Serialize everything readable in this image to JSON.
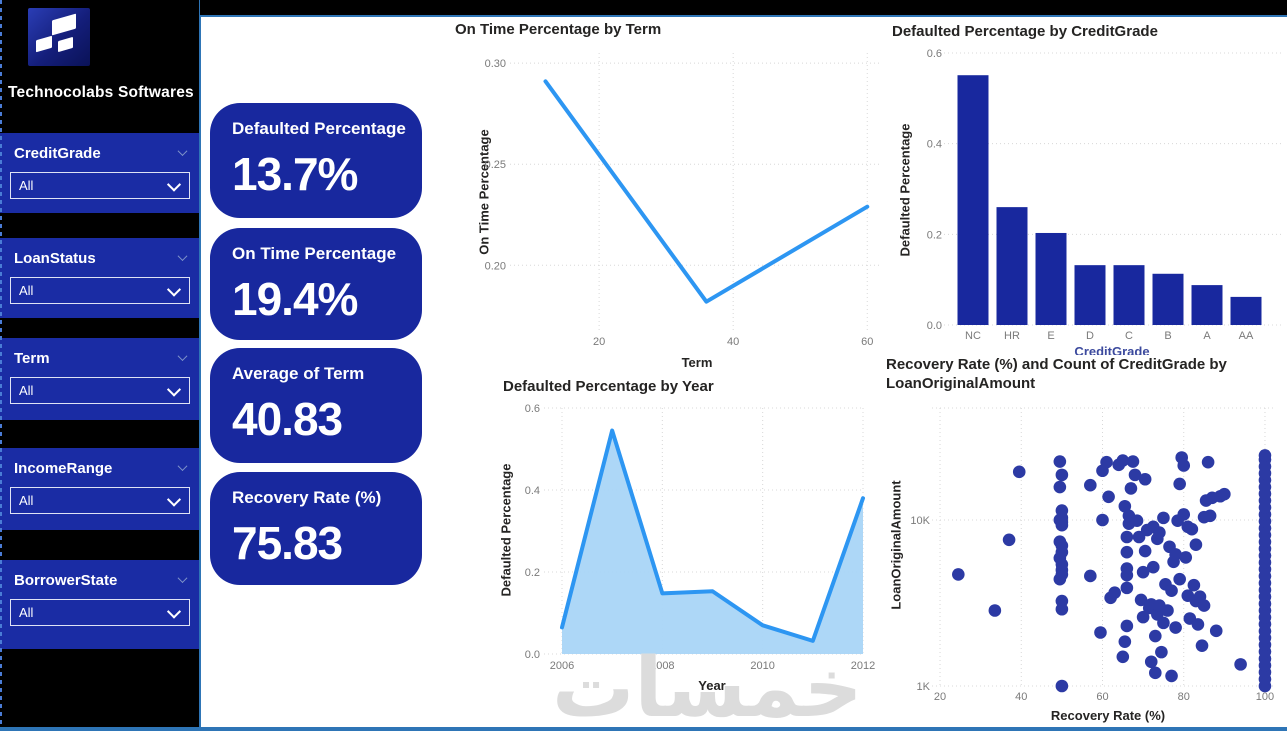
{
  "sidebar": {
    "brand": "Technocolabs Softwares",
    "filters": [
      {
        "label": "CreditGrade",
        "value": "All"
      },
      {
        "label": "LoanStatus",
        "value": "All"
      },
      {
        "label": "Term",
        "value": "All"
      },
      {
        "label": "IncomeRange",
        "value": "All"
      },
      {
        "label": "BorrowerState",
        "value": "All"
      }
    ]
  },
  "cards": [
    {
      "title": "Defaulted Percentage",
      "value": "13.7%"
    },
    {
      "title": "On Time Percentage",
      "value": "19.4%"
    },
    {
      "title": "Average of Term",
      "value": "40.83"
    },
    {
      "title": "Recovery Rate (%)",
      "value": "75.83"
    }
  ],
  "chart_data": [
    {
      "id": "line-term",
      "type": "line",
      "title": "On Time Percentage by Term",
      "xlabel": "Term",
      "ylabel": "On Time Percentage",
      "x": [
        12,
        36,
        60
      ],
      "values": [
        0.291,
        0.182,
        0.229
      ],
      "xlim": [
        7.6,
        62.2
      ],
      "ylim": [
        0.168,
        0.305
      ],
      "xticks": [
        {
          "v": 20,
          "label": "20"
        },
        {
          "v": 40,
          "label": "40"
        },
        {
          "v": 60,
          "label": "60"
        }
      ],
      "yticks": [
        {
          "v": 0.2,
          "label": "0.20"
        },
        {
          "v": 0.25,
          "label": "0.25"
        },
        {
          "v": 0.3,
          "label": "0.30"
        }
      ],
      "grid": "dotted",
      "line_color": "#2D96F2"
    },
    {
      "id": "bar-creditgrade",
      "type": "bar",
      "title": "Defaulted Percentage by CreditGrade",
      "xlabel": "CreditGrade",
      "ylabel": "Defaulted Percentage",
      "categories": [
        "NC",
        "HR",
        "E",
        "D",
        "C",
        "B",
        "A",
        "AA"
      ],
      "values": [
        0.551,
        0.26,
        0.203,
        0.132,
        0.132,
        0.113,
        0.088,
        0.062
      ],
      "ylim": [
        0,
        0.6
      ],
      "yticks": [
        {
          "v": 0.0,
          "label": "0.0"
        },
        {
          "v": 0.2,
          "label": "0.2"
        },
        {
          "v": 0.4,
          "label": "0.4"
        },
        {
          "v": 0.6,
          "label": "0.6"
        }
      ],
      "grid": "dotted",
      "bar_color": "#18289E"
    },
    {
      "id": "area-year",
      "type": "area",
      "title": "Defaulted Percentage by Year",
      "xlabel": "Year",
      "ylabel": "Defaulted Percentage",
      "x": [
        2006,
        2007,
        2008,
        2009,
        2010,
        2011,
        2012
      ],
      "values": [
        0.065,
        0.545,
        0.148,
        0.153,
        0.07,
        0.032,
        0.38
      ],
      "xlim": [
        2006,
        2012
      ],
      "ylim": [
        0,
        0.6
      ],
      "xticks": [
        {
          "v": 2006,
          "label": "2006"
        },
        {
          "v": 2008,
          "label": "2008"
        },
        {
          "v": 2010,
          "label": "2010"
        },
        {
          "v": 2012,
          "label": "2012"
        }
      ],
      "yticks": [
        {
          "v": 0.0,
          "label": "0.0"
        },
        {
          "v": 0.2,
          "label": "0.2"
        },
        {
          "v": 0.4,
          "label": "0.4"
        },
        {
          "v": 0.6,
          "label": "0.6"
        }
      ],
      "grid": "dotted",
      "line_color": "#2D96F2",
      "fill_color": "#A9D5F7"
    },
    {
      "id": "scatter-recovery",
      "type": "scatter",
      "title": "Recovery Rate (%) and Count of CreditGrade by LoanOriginalAmount",
      "title_lines": [
        "Recovery Rate (%) and Count of CreditGrade by",
        "LoanOriginalAmount"
      ],
      "xlabel": "Recovery Rate (%)",
      "ylabel": "LoanOriginalAmount",
      "xlim": [
        19.5,
        100.5
      ],
      "y_scale": "log",
      "xticks": [
        {
          "v": 20,
          "label": "20"
        },
        {
          "v": 40,
          "label": "40"
        },
        {
          "v": 60,
          "label": "60"
        },
        {
          "v": 80,
          "label": "80"
        },
        {
          "v": 100,
          "label": "100"
        }
      ],
      "yticks": [
        {
          "v": 1000,
          "label": "1K"
        },
        {
          "v": 10000,
          "label": "10K"
        }
      ],
      "grid": "dotted",
      "dot_color": "#2C3AA4",
      "points": [
        [
          24.5,
          4700
        ],
        [
          33.5,
          2850
        ],
        [
          37,
          7600
        ],
        [
          39.5,
          19500
        ],
        [
          49.5,
          4400
        ],
        [
          49.5,
          5900
        ],
        [
          49.5,
          7400
        ],
        [
          49.5,
          10000
        ],
        [
          49.5,
          15800
        ],
        [
          49.5,
          22500
        ],
        [
          50,
          1000
        ],
        [
          50,
          2900
        ],
        [
          50,
          3250
        ],
        [
          50,
          4700
        ],
        [
          50,
          5000
        ],
        [
          50,
          5400
        ],
        [
          50,
          6400
        ],
        [
          50,
          7000
        ],
        [
          50,
          9300
        ],
        [
          50,
          9700
        ],
        [
          50,
          10300
        ],
        [
          50,
          11400
        ],
        [
          50,
          18700
        ],
        [
          57,
          4600
        ],
        [
          57,
          16200
        ],
        [
          59.5,
          2100
        ],
        [
          60,
          10000
        ],
        [
          60,
          19800
        ],
        [
          61,
          22300
        ],
        [
          61.5,
          13800
        ],
        [
          62,
          3400
        ],
        [
          63,
          3650
        ],
        [
          64,
          21500
        ],
        [
          65,
          22800
        ],
        [
          65,
          1500
        ],
        [
          65.5,
          1850
        ],
        [
          65.5,
          12100
        ],
        [
          66,
          2300
        ],
        [
          66,
          3900
        ],
        [
          66,
          4650
        ],
        [
          66,
          5100
        ],
        [
          66,
          6400
        ],
        [
          66,
          7900
        ],
        [
          66.5,
          9500
        ],
        [
          66.5,
          10600
        ],
        [
          67,
          15500
        ],
        [
          67.5,
          22500
        ],
        [
          68,
          18700
        ],
        [
          68.5,
          9900
        ],
        [
          69,
          7900
        ],
        [
          69.5,
          3300
        ],
        [
          70,
          2600
        ],
        [
          70,
          4850
        ],
        [
          70.5,
          6500
        ],
        [
          70.5,
          17600
        ],
        [
          71,
          8700
        ],
        [
          71.5,
          2950
        ],
        [
          72,
          1400
        ],
        [
          72,
          3100
        ],
        [
          72.5,
          5200
        ],
        [
          72.5,
          9100
        ],
        [
          73,
          1200
        ],
        [
          73,
          2000
        ],
        [
          73.5,
          2700
        ],
        [
          73.5,
          7700
        ],
        [
          74,
          3050
        ],
        [
          74,
          8400
        ],
        [
          74.5,
          1600
        ],
        [
          75,
          2400
        ],
        [
          75,
          10300
        ],
        [
          75.5,
          4100
        ],
        [
          76,
          2850
        ],
        [
          76.5,
          6900
        ],
        [
          77,
          1150
        ],
        [
          77,
          3750
        ],
        [
          77.5,
          5600
        ],
        [
          78,
          2250
        ],
        [
          78,
          6200
        ],
        [
          78.5,
          9900
        ],
        [
          79,
          4400
        ],
        [
          79,
          16500
        ],
        [
          79.5,
          23800
        ],
        [
          80,
          10800
        ],
        [
          80,
          21300
        ],
        [
          80.5,
          5950
        ],
        [
          81,
          3500
        ],
        [
          81,
          9100
        ],
        [
          81.5,
          2550
        ],
        [
          82,
          8800
        ],
        [
          82.5,
          4050
        ],
        [
          83,
          3250
        ],
        [
          83,
          7100
        ],
        [
          83.5,
          2350
        ],
        [
          84,
          3450
        ],
        [
          84.5,
          1750
        ],
        [
          85,
          3050
        ],
        [
          85,
          10400
        ],
        [
          85.5,
          13100
        ],
        [
          86,
          22300
        ],
        [
          86.5,
          10600
        ],
        [
          87,
          13600
        ],
        [
          88,
          2150
        ],
        [
          89,
          13900
        ],
        [
          90,
          14300
        ],
        [
          94,
          1350
        ],
        [
          100,
          1000
        ],
        [
          100,
          1100
        ],
        [
          100,
          1210
        ],
        [
          100,
          1330
        ],
        [
          100,
          1460
        ],
        [
          100,
          1610
        ],
        [
          100,
          1770
        ],
        [
          100,
          1950
        ],
        [
          100,
          2140
        ],
        [
          100,
          2360
        ],
        [
          100,
          2590
        ],
        [
          100,
          2850
        ],
        [
          100,
          3130
        ],
        [
          100,
          3450
        ],
        [
          100,
          3790
        ],
        [
          100,
          4170
        ],
        [
          100,
          4590
        ],
        [
          100,
          5050
        ],
        [
          100,
          5550
        ],
        [
          100,
          6100
        ],
        [
          100,
          6710
        ],
        [
          100,
          7380
        ],
        [
          100,
          8120
        ],
        [
          100,
          8930
        ],
        [
          100,
          9820
        ],
        [
          100,
          10800
        ],
        [
          100,
          11900
        ],
        [
          100,
          13100
        ],
        [
          100,
          14400
        ],
        [
          100,
          15800
        ],
        [
          100,
          17400
        ],
        [
          100,
          19100
        ],
        [
          100,
          21000
        ],
        [
          100,
          23100
        ],
        [
          100,
          24500
        ]
      ]
    }
  ],
  "watermark": "خمسات",
  "colors": {
    "deep_blue": "#18289E",
    "slicer_blue": "#1A2CA4",
    "accent_line_blue": "#2D96F2",
    "area_fill": "#A9D5F7",
    "scatter_dot": "#2C3AA4",
    "chrome_line": "#2E75B6",
    "watermark_gray": "#DCDCDC"
  }
}
